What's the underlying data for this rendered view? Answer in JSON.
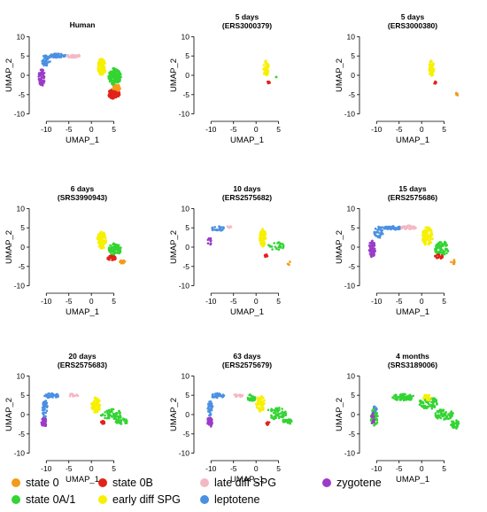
{
  "colors": {
    "state 0": "#f59a1a",
    "state 0B": "#e2231a",
    "late diff SPG": "#f4b8c3",
    "zygotene": "#9b3cc8",
    "state 0A/1": "#33d433",
    "early diff SPG": "#f7f000",
    "leptotene": "#4a90e2"
  },
  "legend": {
    "rows": [
      [
        {
          "label": "state 0",
          "key": "state 0"
        },
        {
          "label": "state 0B",
          "key": "state 0B"
        },
        {
          "label": "late diff SPG",
          "key": "late diff SPG"
        },
        {
          "label": "zygotene",
          "key": "zygotene"
        }
      ],
      [
        {
          "label": "state 0A/1",
          "key": "state 0A/1"
        },
        {
          "label": "early diff SPG",
          "key": "early diff SPG"
        },
        {
          "label": "leptotene",
          "key": "leptotene"
        }
      ]
    ]
  },
  "chart_data": [
    {
      "type": "scatter",
      "title": "Human",
      "subtitle": "",
      "xlabel": "UMAP_1",
      "ylabel": "UMAP_2",
      "xlim": [
        -13,
        9
      ],
      "ylim": [
        -11,
        11
      ],
      "xticks": [
        -10,
        -5,
        0,
        5
      ],
      "yticks": [
        -10,
        -5,
        0,
        5,
        10
      ],
      "clusters": [
        {
          "state": "zygotene",
          "cx": -11,
          "cy": -0.5,
          "rx": 0.7,
          "ry": 2.2,
          "n": 60
        },
        {
          "state": "leptotene",
          "cx": -10,
          "cy": 3.8,
          "rx": 1.0,
          "ry": 1.5,
          "n": 40
        },
        {
          "state": "leptotene",
          "cx": -7.5,
          "cy": 5.1,
          "rx": 1.8,
          "ry": 0.5,
          "n": 50
        },
        {
          "state": "late diff SPG",
          "cx": -4,
          "cy": 5.0,
          "rx": 1.5,
          "ry": 0.5,
          "n": 40
        },
        {
          "state": "early diff SPG",
          "cx": 2.3,
          "cy": 2.2,
          "rx": 0.9,
          "ry": 2.2,
          "n": 90
        },
        {
          "state": "state 0A/1",
          "cx": 5.2,
          "cy": -0.3,
          "rx": 1.4,
          "ry": 2.3,
          "n": 150
        },
        {
          "state": "state 0B",
          "cx": 5,
          "cy": -4.8,
          "rx": 1.3,
          "ry": 1.3,
          "n": 110
        },
        {
          "state": "state 0",
          "cx": 5.6,
          "cy": -3.2,
          "rx": 0.9,
          "ry": 0.9,
          "n": 30
        }
      ]
    },
    {
      "type": "scatter",
      "title": "5 days",
      "subtitle": "(ERS3000379)",
      "xlabel": "UMAP_1",
      "ylabel": "UMAP_2",
      "xlim": [
        -13,
        9
      ],
      "ylim": [
        -11,
        11
      ],
      "xticks": [
        -10,
        -5,
        0,
        5
      ],
      "yticks": [
        -10,
        -5,
        0,
        5,
        10
      ],
      "clusters": [
        {
          "state": "early diff SPG",
          "cx": 2.2,
          "cy": 1.8,
          "rx": 0.6,
          "ry": 2.0,
          "n": 60
        },
        {
          "state": "state 0B",
          "cx": 2.8,
          "cy": -1.8,
          "rx": 0.3,
          "ry": 0.4,
          "n": 8
        },
        {
          "state": "state 0A/1",
          "cx": 4.5,
          "cy": -0.5,
          "rx": 0.1,
          "ry": 0.1,
          "n": 2
        }
      ]
    },
    {
      "type": "scatter",
      "title": "5 days",
      "subtitle": "(ERS3000380)",
      "xlabel": "UMAP_1",
      "ylabel": "UMAP_2",
      "xlim": [
        -13,
        9
      ],
      "ylim": [
        -11,
        11
      ],
      "xticks": [
        -10,
        -5,
        0,
        5
      ],
      "yticks": [
        -10,
        -5,
        0,
        5,
        10
      ],
      "clusters": [
        {
          "state": "early diff SPG",
          "cx": 2.2,
          "cy": 1.8,
          "rx": 0.6,
          "ry": 2.0,
          "n": 60
        },
        {
          "state": "state 0B",
          "cx": 3.0,
          "cy": -1.8,
          "rx": 0.3,
          "ry": 0.4,
          "n": 8
        },
        {
          "state": "state 0",
          "cx": 7.8,
          "cy": -5.0,
          "rx": 0.2,
          "ry": 0.6,
          "n": 8
        }
      ]
    },
    {
      "type": "scatter",
      "title": "6 days",
      "subtitle": "(SRS3990943)",
      "xlabel": "UMAP_1",
      "ylabel": "UMAP_2",
      "xlim": [
        -13,
        9
      ],
      "ylim": [
        -11,
        11
      ],
      "xticks": [
        -10,
        -5,
        0,
        5
      ],
      "yticks": [
        -10,
        -5,
        0,
        5,
        10
      ],
      "clusters": [
        {
          "state": "early diff SPG",
          "cx": 2.3,
          "cy": 1.8,
          "rx": 1.0,
          "ry": 2.2,
          "n": 110
        },
        {
          "state": "state 0A/1",
          "cx": 5.2,
          "cy": -0.6,
          "rx": 1.4,
          "ry": 1.6,
          "n": 80
        },
        {
          "state": "state 0B",
          "cx": 4.5,
          "cy": -2.8,
          "rx": 1.0,
          "ry": 0.6,
          "n": 30
        },
        {
          "state": "state 0",
          "cx": 6.8,
          "cy": -3.8,
          "rx": 0.7,
          "ry": 0.5,
          "n": 20
        }
      ]
    },
    {
      "type": "scatter",
      "title": "10 days",
      "subtitle": "(ERS2575682)",
      "xlabel": "UMAP_1",
      "ylabel": "UMAP_2",
      "xlim": [
        -13,
        9
      ],
      "ylim": [
        -11,
        11
      ],
      "xticks": [
        -10,
        -5,
        0,
        5
      ],
      "yticks": [
        -10,
        -5,
        0,
        5,
        10
      ],
      "clusters": [
        {
          "state": "zygotene",
          "cx": -10.3,
          "cy": 1.5,
          "rx": 0.4,
          "ry": 1.2,
          "n": 12
        },
        {
          "state": "leptotene",
          "cx": -8.5,
          "cy": 4.8,
          "rx": 1.6,
          "ry": 0.6,
          "n": 25
        },
        {
          "state": "late diff SPG",
          "cx": -6,
          "cy": 5.2,
          "rx": 0.6,
          "ry": 0.3,
          "n": 5
        },
        {
          "state": "early diff SPG",
          "cx": 1.5,
          "cy": 2.5,
          "rx": 0.7,
          "ry": 2.3,
          "n": 90
        },
        {
          "state": "state 0A/1",
          "cx": 4.5,
          "cy": 0.3,
          "rx": 1.8,
          "ry": 1.0,
          "n": 25
        },
        {
          "state": "state 0B",
          "cx": 2.3,
          "cy": -2.2,
          "rx": 0.4,
          "ry": 0.4,
          "n": 10
        },
        {
          "state": "state 0",
          "cx": 7.2,
          "cy": -4.0,
          "rx": 0.5,
          "ry": 0.6,
          "n": 4
        }
      ]
    },
    {
      "type": "scatter",
      "title": "15 days",
      "subtitle": "(ERS2575686)",
      "xlabel": "UMAP_1",
      "ylabel": "UMAP_2",
      "xlim": [
        -13,
        9
      ],
      "ylim": [
        -11,
        11
      ],
      "xticks": [
        -10,
        -5,
        0,
        5
      ],
      "yticks": [
        -10,
        -5,
        0,
        5,
        10
      ],
      "clusters": [
        {
          "state": "zygotene",
          "cx": -11,
          "cy": -0.5,
          "rx": 0.7,
          "ry": 2.2,
          "n": 60
        },
        {
          "state": "leptotene",
          "cx": -9.5,
          "cy": 3.8,
          "rx": 1.0,
          "ry": 1.5,
          "n": 40
        },
        {
          "state": "leptotene",
          "cx": -6.5,
          "cy": 5.0,
          "rx": 2.2,
          "ry": 0.5,
          "n": 60
        },
        {
          "state": "late diff SPG",
          "cx": -3,
          "cy": 5.1,
          "rx": 1.8,
          "ry": 0.5,
          "n": 40
        },
        {
          "state": "early diff SPG",
          "cx": 1.3,
          "cy": 2.8,
          "rx": 1.2,
          "ry": 2.4,
          "n": 110
        },
        {
          "state": "state 0A/1",
          "cx": 4.5,
          "cy": -0.3,
          "rx": 1.6,
          "ry": 1.8,
          "n": 70
        },
        {
          "state": "state 0B",
          "cx": 3.8,
          "cy": -2.5,
          "rx": 0.9,
          "ry": 0.6,
          "n": 20
        },
        {
          "state": "state 0",
          "cx": 7,
          "cy": -4.0,
          "rx": 0.6,
          "ry": 0.8,
          "n": 10
        }
      ]
    },
    {
      "type": "scatter",
      "title": "20 days",
      "subtitle": "(ERS2575683)",
      "xlabel": "UMAP_1",
      "ylabel": "UMAP_2",
      "xlim": [
        -13,
        9
      ],
      "ylim": [
        -11,
        11
      ],
      "xticks": [
        -10,
        -5,
        0,
        5
      ],
      "yticks": [
        -10,
        -5,
        0,
        5,
        10
      ],
      "clusters": [
        {
          "state": "zygotene",
          "cx": -10.5,
          "cy": -2.0,
          "rx": 0.6,
          "ry": 1.2,
          "n": 40
        },
        {
          "state": "leptotene",
          "cx": -10.3,
          "cy": 1.5,
          "rx": 0.6,
          "ry": 2.2,
          "n": 40
        },
        {
          "state": "leptotene",
          "cx": -8.8,
          "cy": 4.9,
          "rx": 1.6,
          "ry": 0.6,
          "n": 40
        },
        {
          "state": "late diff SPG",
          "cx": -4,
          "cy": 5.0,
          "rx": 1.2,
          "ry": 0.4,
          "n": 12
        },
        {
          "state": "early diff SPG",
          "cx": 1.0,
          "cy": 2.5,
          "rx": 1.0,
          "ry": 2.0,
          "n": 70
        },
        {
          "state": "state 0A/1",
          "cx": 4.5,
          "cy": 0.0,
          "rx": 2.4,
          "ry": 1.4,
          "n": 60
        },
        {
          "state": "state 0A/1",
          "cx": 6.8,
          "cy": -1.8,
          "rx": 1.4,
          "ry": 0.8,
          "n": 30
        },
        {
          "state": "state 0B",
          "cx": 2.5,
          "cy": -2.0,
          "rx": 0.5,
          "ry": 0.4,
          "n": 12
        }
      ]
    },
    {
      "type": "scatter",
      "title": "63 days",
      "subtitle": "(ERS2575679)",
      "xlabel": "UMAP_1",
      "ylabel": "UMAP_2",
      "xlim": [
        -13,
        9
      ],
      "ylim": [
        -11,
        11
      ],
      "xticks": [
        -10,
        -5,
        0,
        5
      ],
      "yticks": [
        -10,
        -5,
        0,
        5,
        10
      ],
      "clusters": [
        {
          "state": "zygotene",
          "cx": -10.3,
          "cy": -2.0,
          "rx": 0.6,
          "ry": 1.3,
          "n": 40
        },
        {
          "state": "leptotene",
          "cx": -10.2,
          "cy": 1.5,
          "rx": 0.6,
          "ry": 2.0,
          "n": 40
        },
        {
          "state": "leptotene",
          "cx": -8.5,
          "cy": 4.9,
          "rx": 1.5,
          "ry": 0.6,
          "n": 40
        },
        {
          "state": "late diff SPG",
          "cx": -4,
          "cy": 5.0,
          "rx": 1.2,
          "ry": 0.5,
          "n": 15
        },
        {
          "state": "state 0A/1",
          "cx": -1.0,
          "cy": 4.4,
          "rx": 1.0,
          "ry": 0.9,
          "n": 30
        },
        {
          "state": "early diff SPG",
          "cx": 1.0,
          "cy": 2.8,
          "rx": 1.0,
          "ry": 2.0,
          "n": 70
        },
        {
          "state": "state 0A/1",
          "cx": 4.5,
          "cy": 0.3,
          "rx": 2.2,
          "ry": 1.6,
          "n": 60
        },
        {
          "state": "state 0A/1",
          "cx": 7.0,
          "cy": -1.8,
          "rx": 1.2,
          "ry": 0.7,
          "n": 30
        },
        {
          "state": "state 0B",
          "cx": 2.6,
          "cy": -2.3,
          "rx": 0.5,
          "ry": 0.4,
          "n": 10
        }
      ]
    },
    {
      "type": "scatter",
      "title": "4 months",
      "subtitle": "(SRS3189006)",
      "xlabel": "UMAP_1",
      "ylabel": "UMAP_2",
      "xlim": [
        -13,
        9
      ],
      "ylim": [
        -11,
        11
      ],
      "xticks": [
        -10,
        -5,
        0,
        5
      ],
      "yticks": [
        -10,
        -5,
        0,
        5,
        10
      ],
      "clusters": [
        {
          "state": "state 0A/1",
          "cx": -10.5,
          "cy": -0.8,
          "rx": 0.8,
          "ry": 2.3,
          "n": 60
        },
        {
          "state": "zygotene",
          "cx": -10.8,
          "cy": -1.0,
          "rx": 0.4,
          "ry": 1.6,
          "n": 15
        },
        {
          "state": "leptotene",
          "cx": -10.3,
          "cy": 1.5,
          "rx": 0.4,
          "ry": 0.8,
          "n": 8
        },
        {
          "state": "state 0A/1",
          "cx": -4.0,
          "cy": 4.5,
          "rx": 2.5,
          "ry": 0.9,
          "n": 70
        },
        {
          "state": "state 0A/1",
          "cx": 1.5,
          "cy": 3.0,
          "rx": 2.0,
          "ry": 1.6,
          "n": 70
        },
        {
          "state": "early diff SPG",
          "cx": 1.3,
          "cy": 4.4,
          "rx": 1.0,
          "ry": 0.8,
          "n": 25
        },
        {
          "state": "state 0A/1",
          "cx": 5.0,
          "cy": 0.0,
          "rx": 2.0,
          "ry": 1.5,
          "n": 60
        },
        {
          "state": "state 0A/1",
          "cx": 7.5,
          "cy": -2.5,
          "rx": 1.0,
          "ry": 1.2,
          "n": 30
        }
      ]
    }
  ]
}
